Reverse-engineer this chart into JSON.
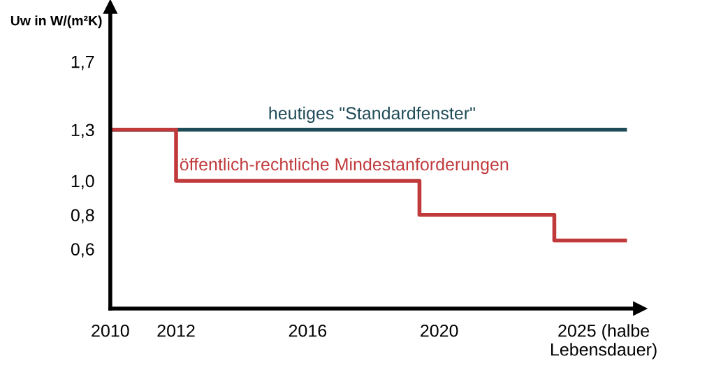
{
  "chart_data": {
    "type": "step",
    "ylabel": "Uw in W/(m²K)",
    "series": [
      {
        "name": "heutiges \"Standardfenster\"",
        "type": "line",
        "color": "#1f4b57",
        "x": [
          2010,
          2025.65
        ],
        "values": [
          1.3,
          1.3
        ]
      },
      {
        "name": "öffentlich-rechtliche Mindestanforderungen",
        "color": "#c0393b",
        "x": [
          2010,
          2012,
          2019.4,
          2023.5,
          2025.65
        ],
        "values": [
          1.3,
          1.0,
          0.8,
          0.65,
          0.65
        ]
      }
    ],
    "xlim": [
      2010,
      2026.1
    ],
    "xticks": [
      2010,
      2012,
      2016,
      2020,
      {
        "value": 2025,
        "label": "2025 (halbe\nLebensdauer)"
      }
    ],
    "ylim": [
      0.25,
      2.02
    ],
    "yticks": [
      {
        "value": 0.6,
        "label": "0,6"
      },
      {
        "value": 0.8,
        "label": "0,8"
      },
      {
        "value": 1.0,
        "label": "1,0"
      },
      {
        "value": 1.3,
        "label": "1,3"
      },
      {
        "value": 1.7,
        "label": "1,7"
      }
    ],
    "grid": false,
    "legend": false
  }
}
